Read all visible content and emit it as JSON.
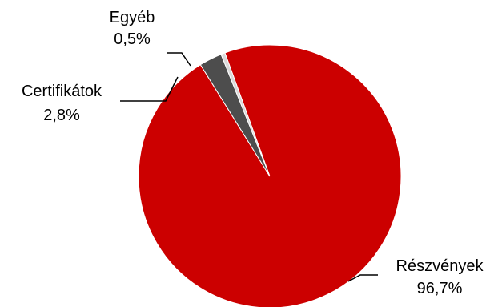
{
  "chart_data": {
    "type": "pie",
    "title": "",
    "slices": [
      {
        "name": "Részvények",
        "value": 96.7,
        "label": "96,7%",
        "color": "#CC0000"
      },
      {
        "name": "Certifikátok",
        "value": 2.8,
        "label": "2,8%",
        "color": "#4D4D4D"
      },
      {
        "name": "Egyéb",
        "value": 0.5,
        "label": "0,5%",
        "color": "#D9D9D9"
      }
    ],
    "legend": "none",
    "data_labels": "outside-with-leader-lines"
  }
}
